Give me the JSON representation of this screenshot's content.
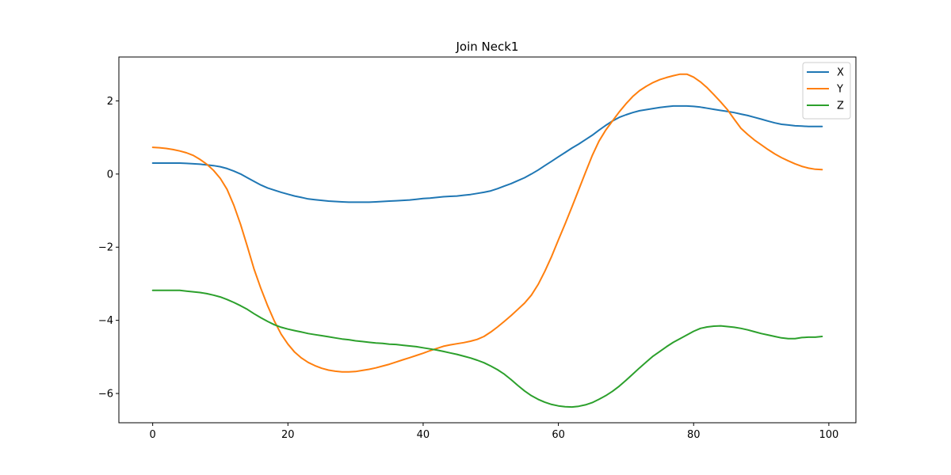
{
  "chart_data": {
    "type": "line",
    "title": "Join Neck1",
    "xlabel": "",
    "ylabel": "",
    "xlim": [
      -5,
      104
    ],
    "ylim": [
      -6.8,
      3.2
    ],
    "xticks": [
      0,
      20,
      40,
      60,
      80,
      100
    ],
    "xtick_labels": [
      "0",
      "20",
      "40",
      "60",
      "80",
      "100"
    ],
    "yticks": [
      2,
      0,
      -2,
      -4,
      -6
    ],
    "ytick_labels": [
      "2",
      "0",
      "−2",
      "−4",
      "−6"
    ],
    "grid": false,
    "legend_position": "top-right",
    "x": [
      0,
      1,
      2,
      3,
      4,
      5,
      6,
      7,
      8,
      9,
      10,
      11,
      12,
      13,
      14,
      15,
      16,
      17,
      18,
      19,
      20,
      21,
      22,
      23,
      24,
      25,
      26,
      27,
      28,
      29,
      30,
      31,
      32,
      33,
      34,
      35,
      36,
      37,
      38,
      39,
      40,
      41,
      42,
      43,
      44,
      45,
      46,
      47,
      48,
      49,
      50,
      51,
      52,
      53,
      54,
      55,
      56,
      57,
      58,
      59,
      60,
      61,
      62,
      63,
      64,
      65,
      66,
      67,
      68,
      69,
      70,
      71,
      72,
      73,
      74,
      75,
      76,
      77,
      78,
      79,
      80,
      81,
      82,
      83,
      84,
      85,
      86,
      87,
      88,
      89,
      90,
      91,
      92,
      93,
      94,
      95,
      96,
      97,
      98,
      99
    ],
    "series": [
      {
        "name": "X",
        "color": "#1f77b4",
        "values": [
          0.3,
          0.3,
          0.3,
          0.3,
          0.3,
          0.29,
          0.28,
          0.27,
          0.25,
          0.23,
          0.2,
          0.15,
          0.08,
          0.0,
          -0.1,
          -0.2,
          -0.3,
          -0.38,
          -0.44,
          -0.5,
          -0.55,
          -0.6,
          -0.64,
          -0.68,
          -0.7,
          -0.72,
          -0.74,
          -0.75,
          -0.76,
          -0.77,
          -0.77,
          -0.77,
          -0.77,
          -0.76,
          -0.75,
          -0.74,
          -0.73,
          -0.72,
          -0.71,
          -0.69,
          -0.67,
          -0.66,
          -0.64,
          -0.62,
          -0.61,
          -0.6,
          -0.58,
          -0.56,
          -0.53,
          -0.5,
          -0.46,
          -0.4,
          -0.33,
          -0.26,
          -0.18,
          -0.1,
          0.0,
          0.11,
          0.23,
          0.35,
          0.47,
          0.59,
          0.71,
          0.82,
          0.94,
          1.06,
          1.2,
          1.33,
          1.45,
          1.55,
          1.62,
          1.68,
          1.73,
          1.76,
          1.79,
          1.82,
          1.84,
          1.86,
          1.86,
          1.86,
          1.85,
          1.83,
          1.8,
          1.77,
          1.74,
          1.71,
          1.68,
          1.64,
          1.6,
          1.55,
          1.5,
          1.45,
          1.4,
          1.36,
          1.34,
          1.32,
          1.31,
          1.3,
          1.3,
          1.3
        ]
      },
      {
        "name": "Y",
        "color": "#ff7f0e",
        "values": [
          0.73,
          0.72,
          0.7,
          0.67,
          0.63,
          0.58,
          0.51,
          0.4,
          0.27,
          0.1,
          -0.12,
          -0.42,
          -0.85,
          -1.38,
          -1.98,
          -2.6,
          -3.13,
          -3.6,
          -4.02,
          -4.38,
          -4.65,
          -4.87,
          -5.03,
          -5.15,
          -5.24,
          -5.31,
          -5.36,
          -5.39,
          -5.41,
          -5.41,
          -5.4,
          -5.37,
          -5.34,
          -5.3,
          -5.25,
          -5.2,
          -5.14,
          -5.08,
          -5.02,
          -4.96,
          -4.9,
          -4.83,
          -4.77,
          -4.71,
          -4.67,
          -4.64,
          -4.61,
          -4.57,
          -4.52,
          -4.44,
          -4.32,
          -4.18,
          -4.03,
          -3.87,
          -3.7,
          -3.53,
          -3.31,
          -3.02,
          -2.66,
          -2.25,
          -1.8,
          -1.36,
          -0.9,
          -0.43,
          0.04,
          0.5,
          0.9,
          1.2,
          1.45,
          1.7,
          1.92,
          2.12,
          2.28,
          2.4,
          2.5,
          2.58,
          2.64,
          2.69,
          2.73,
          2.73,
          2.65,
          2.52,
          2.36,
          2.17,
          1.97,
          1.76,
          1.5,
          1.25,
          1.08,
          0.93,
          0.8,
          0.67,
          0.55,
          0.45,
          0.36,
          0.28,
          0.21,
          0.16,
          0.13,
          0.12
        ]
      },
      {
        "name": "Z",
        "color": "#2ca02c",
        "values": [
          -3.18,
          -3.18,
          -3.18,
          -3.18,
          -3.18,
          -3.2,
          -3.22,
          -3.24,
          -3.27,
          -3.31,
          -3.36,
          -3.43,
          -3.51,
          -3.6,
          -3.7,
          -3.82,
          -3.93,
          -4.03,
          -4.12,
          -4.19,
          -4.24,
          -4.28,
          -4.32,
          -4.36,
          -4.39,
          -4.42,
          -4.45,
          -4.48,
          -4.51,
          -4.53,
          -4.56,
          -4.58,
          -4.6,
          -4.62,
          -4.63,
          -4.65,
          -4.66,
          -4.68,
          -4.7,
          -4.72,
          -4.75,
          -4.78,
          -4.81,
          -4.85,
          -4.89,
          -4.93,
          -4.98,
          -5.03,
          -5.09,
          -5.16,
          -5.25,
          -5.35,
          -5.47,
          -5.62,
          -5.78,
          -5.93,
          -6.06,
          -6.16,
          -6.24,
          -6.3,
          -6.34,
          -6.36,
          -6.37,
          -6.35,
          -6.31,
          -6.25,
          -6.16,
          -6.06,
          -5.94,
          -5.8,
          -5.64,
          -5.47,
          -5.3,
          -5.14,
          -4.98,
          -4.85,
          -4.72,
          -4.6,
          -4.5,
          -4.4,
          -4.3,
          -4.22,
          -4.18,
          -4.16,
          -4.15,
          -4.17,
          -4.19,
          -4.22,
          -4.26,
          -4.31,
          -4.36,
          -4.4,
          -4.44,
          -4.48,
          -4.5,
          -4.5,
          -4.47,
          -4.46,
          -4.46,
          -4.44
        ]
      }
    ]
  }
}
